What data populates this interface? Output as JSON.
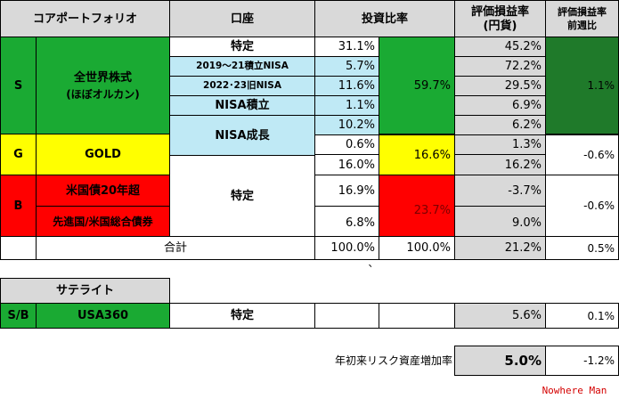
{
  "header": {
    "core": "コアポートフォリオ",
    "account": "口座",
    "alloc": "投資比率",
    "pnl": "評価損益率\n(円貨)",
    "pnl_line1": "評価損益率",
    "pnl_line2": "(円貨)",
    "wow_line1": "評価損益率",
    "wow_line2": "前週比"
  },
  "s_row": {
    "code": "S",
    "asset_line1": "全世界株式",
    "asset_line2": "(ほぼオルカン)",
    "accounts": [
      "特定",
      "2019～21積立NISA",
      "2022･23旧NISA",
      "NISA積立",
      "NISA成長"
    ],
    "account_pcts": [
      "31.1%",
      "5.7%",
      "11.6%",
      "1.1%",
      "10.2%"
    ],
    "total_pct": "59.7%",
    "pnls": [
      "45.2%",
      "72.2%",
      "29.5%",
      "6.9%",
      "6.2%"
    ],
    "wow": "1.1%"
  },
  "g_row": {
    "code": "G",
    "asset": "GOLD",
    "account_pcts": [
      "0.6%",
      "16.0%"
    ],
    "total_pct": "16.6%",
    "pnls": [
      "1.3%",
      "16.2%"
    ],
    "wow": "-0.6%"
  },
  "b_row": {
    "code": "B",
    "assets": [
      "米国債20年超",
      "先進国/米国総合債券"
    ],
    "account": "特定",
    "account_pcts": [
      "16.9%",
      "6.8%"
    ],
    "total_pct": "23.7%",
    "pnls": [
      "-3.7%",
      "9.0%"
    ],
    "wow": "-0.6%"
  },
  "total_row": {
    "label": "合計",
    "account_total": "100.0%",
    "alloc_total": "100.0%",
    "pnl": "21.2%",
    "wow": "0.5%"
  },
  "stray_mark": "、",
  "satellite": {
    "header": "サテライト",
    "code": "S/B",
    "asset": "USA360",
    "account": "特定",
    "pnl": "5.6%",
    "wow": "0.1%"
  },
  "risk": {
    "label": "年初来リスク資産増加率",
    "value": "5.0%",
    "wow": "-1.2%"
  },
  "signature": "Nowhere Man"
}
